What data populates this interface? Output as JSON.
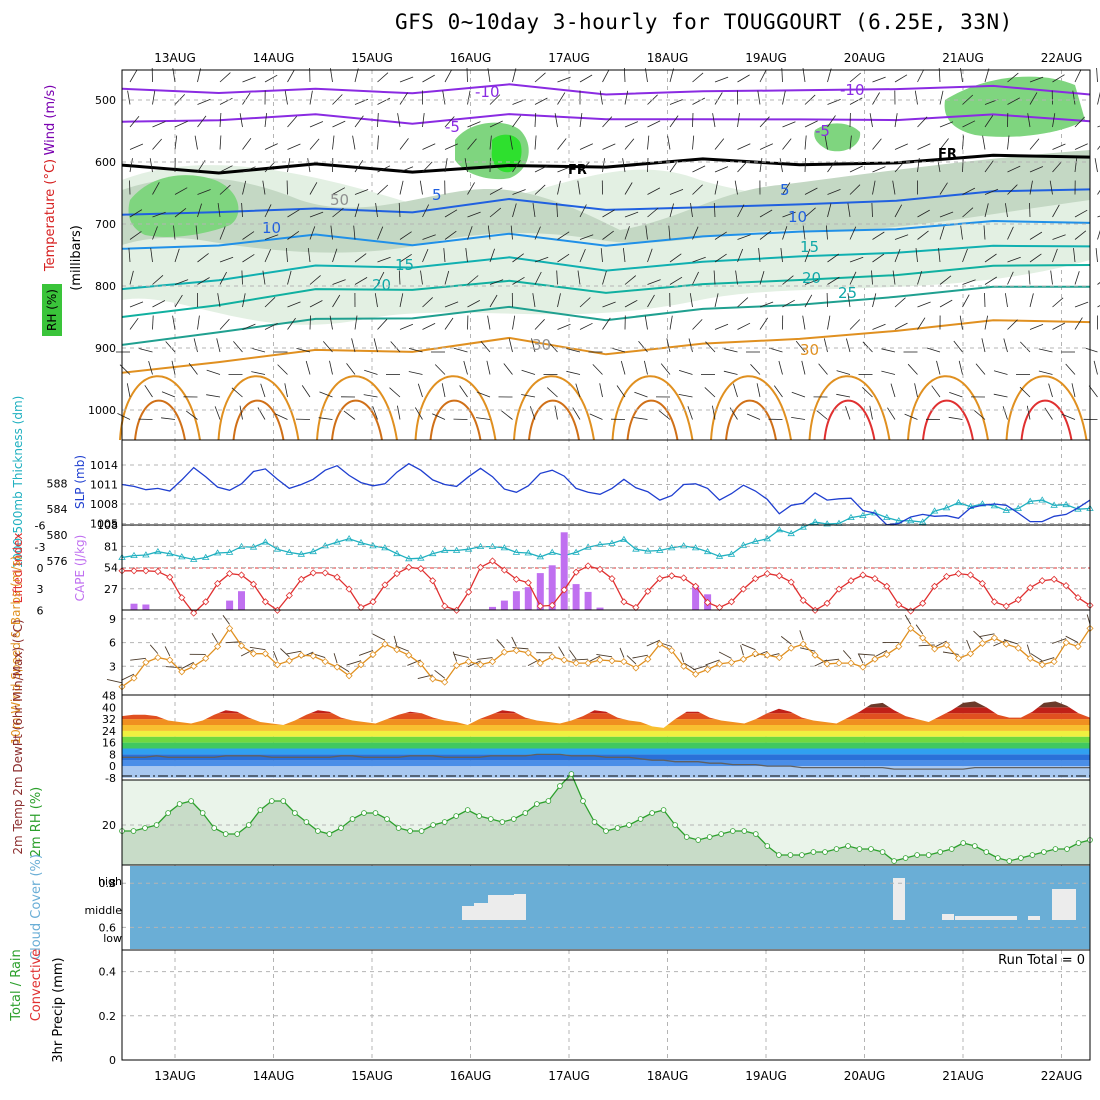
{
  "title": "GFS 0~10day 3-hourly for TOUGGOURT (6.25E, 33N)",
  "colors": {
    "wind": "#7a00b0",
    "temp": "#d62020",
    "rh": "#2ca02c",
    "slp": "#1f3fd0",
    "thick": "#20b0c0",
    "cape": "#c070f0",
    "li": "#e03030",
    "ws": "#e09020",
    "cloud": "#6aaed6",
    "dewpt": "#606060"
  },
  "chart_data": [
    {
      "type": "contour",
      "panel": "upper-air",
      "title": "",
      "ylabel_parts": [
        "Wind (m/s)",
        "Temperature (°C)",
        "RH (%)",
        "(millibars)"
      ],
      "y_ticks": [
        "500",
        "600",
        "700",
        "800",
        "900",
        "1000"
      ],
      "contour_labels": [
        {
          "text": "-10",
          "color": "purple"
        },
        {
          "text": "-10",
          "color": "purple"
        },
        {
          "text": "-5",
          "color": "purple"
        },
        {
          "text": "-5",
          "color": "purple"
        },
        {
          "text": "FR",
          "color": "black"
        },
        {
          "text": "FR",
          "color": "black"
        },
        {
          "text": "5",
          "color": "blue"
        },
        {
          "text": "5",
          "color": "blue"
        },
        {
          "text": "10",
          "color": "blue"
        },
        {
          "text": "10",
          "color": "blue"
        },
        {
          "text": "15",
          "color": "teal"
        },
        {
          "text": "15",
          "color": "teal"
        },
        {
          "text": "20",
          "color": "teal"
        },
        {
          "text": "20",
          "color": "teal"
        },
        {
          "text": "25",
          "color": "teal"
        },
        {
          "text": "30",
          "color": "orange"
        },
        {
          "text": "50",
          "color": "gray"
        },
        {
          "text": "30",
          "color": "gray"
        }
      ],
      "isotherms_pressure_mb": [
        {
          "label": "-10",
          "p": [
            482,
            486,
            487,
            483,
            481,
            486,
            489,
            484,
            480,
            482,
            485
          ]
        },
        {
          "label": "-5",
          "p": [
            535,
            530,
            528,
            532,
            529,
            526,
            534,
            531,
            530,
            528,
            528
          ]
        },
        {
          "label": "FR",
          "p": [
            605,
            615,
            608,
            610,
            612,
            603,
            598,
            604,
            599,
            594,
            586
          ]
        },
        {
          "label": "5",
          "p": [
            685,
            678,
            680,
            675,
            666,
            672,
            676,
            668,
            660,
            652,
            638
          ]
        },
        {
          "label": "10",
          "p": [
            740,
            732,
            722,
            728,
            722,
            730,
            723,
            712,
            706,
            700,
            692
          ]
        },
        {
          "label": "15",
          "p": [
            805,
            788,
            772,
            764,
            760,
            770,
            764,
            752,
            744,
            740,
            730
          ]
        },
        {
          "label": "20",
          "p": [
            850,
            828,
            810,
            800,
            798,
            806,
            800,
            790,
            780,
            772,
            760
          ]
        },
        {
          "label": "25",
          "p": [
            895,
            872,
            858,
            846,
            840,
            850,
            840,
            830,
            815,
            806,
            795
          ]
        },
        {
          "label": "30",
          "p": [
            940,
            920,
            908,
            900,
            890,
            905,
            896,
            885,
            870,
            860,
            852
          ]
        }
      ]
    },
    {
      "type": "line",
      "panel": "slp-thickness",
      "ylabel_left": "1000-500mb Thickness (dm)",
      "ylabel_right": "SLP (mb)",
      "thickness_ticks": [
        "588",
        "584",
        "580",
        "576"
      ],
      "slp_ticks": [
        "1014",
        "1011",
        "1008",
        "1005"
      ],
      "series": [
        {
          "name": "SLP (mb)",
          "values": [
            1011.0,
            1010.7,
            1010.2,
            1010.4,
            1010.0,
            1011.7,
            1013.6,
            1012.2,
            1010.6,
            1010.1,
            1011.1,
            1013.0,
            1013.4,
            1011.8,
            1010.4,
            1011.0,
            1011.8,
            1013.2,
            1013.9,
            1012.4,
            1011.3,
            1010.8,
            1011.1,
            1012.9,
            1014.2,
            1013.2,
            1011.7,
            1011.0,
            1010.7,
            1012.2,
            1013.5,
            1012.2,
            1010.3,
            1009.8,
            1010.8,
            1012.7,
            1013.2,
            1012.3,
            1010.4,
            1009.8,
            1009.5,
            1010.4,
            1011.8,
            1010.5,
            1009.9,
            1008.6,
            1009.3,
            1011.0,
            1011.1,
            1010.4,
            1008.6,
            1009.6,
            1010.9,
            1010.0,
            1008.7,
            1006.5,
            1007.8,
            1008.1,
            1009.7,
            1008.6,
            1008.8,
            1008.9,
            1007.0,
            1006.6,
            1004.8,
            1005.0,
            1006.0,
            1006.4,
            1006.1,
            1006.2,
            1005.8,
            1007.4,
            1007.8,
            1008.0,
            1007.8,
            1006.6,
            1005.3,
            1005.3,
            1006.1,
            1006.4,
            1007.4,
            1008.6
          ]
        },
        {
          "name": "1000-500mb Thickness (dm)",
          "values": [
            576.5,
            576.8,
            576.9,
            577.4,
            577.1,
            576.6,
            576.2,
            576.5,
            577.2,
            577.3,
            578.2,
            578.1,
            578.9,
            577.8,
            577.3,
            577.0,
            577.4,
            578.3,
            578.9,
            579.4,
            578.8,
            578.3,
            578.0,
            577.1,
            576.3,
            576.4,
            577.1,
            577.6,
            577.6,
            577.8,
            578.2,
            578.2,
            578.0,
            577.3,
            577.2,
            576.6,
            577.3,
            576.8,
            577.3,
            578.1,
            578.5,
            578.7,
            579.3,
            577.8,
            577.5,
            577.6,
            578.0,
            578.3,
            578.0,
            577.4,
            576.7,
            577.0,
            578.4,
            579.0,
            579.4,
            580.8,
            580.2,
            581.2,
            582.0,
            581.7,
            581.8,
            582.7,
            583.0,
            583.4,
            582.7,
            582.2,
            582.2,
            582.0,
            583.7,
            584.2,
            585.0,
            584.4,
            584.8,
            584.5,
            583.8,
            584.1,
            585.2,
            585.4,
            584.6,
            584.7,
            584.0,
            584.1
          ]
        }
      ]
    },
    {
      "type": "line",
      "panel": "cape-lifted-index",
      "ylabel_left": "Lifted Index",
      "ylabel_right": "CAPE (J/kg)",
      "li_ticks": [
        "-6",
        "-3",
        "0",
        "3",
        "6"
      ],
      "cape_ticks": [
        "108",
        "81",
        "54",
        "27"
      ],
      "series": [
        {
          "name": "Lifted Index",
          "values": [
            0.4,
            0.4,
            0.4,
            0.5,
            1.3,
            4.2,
            6.4,
            4.8,
            2.2,
            0.8,
            1.0,
            2.3,
            4.8,
            6.0,
            3.9,
            1.6,
            0.7,
            0.7,
            1.3,
            3.0,
            5.6,
            4.8,
            2.4,
            0.8,
            -0.1,
            0.1,
            1.8,
            5.4,
            6.0,
            3.4,
            -0.1,
            -1.0,
            0.3,
            1.6,
            2.1,
            5.4,
            5.3,
            3.1,
            0.6,
            -0.3,
            0.2,
            1.5,
            4.8,
            5.6,
            3.3,
            1.5,
            1.1,
            1.4,
            2.6,
            4.9,
            5.6,
            4.8,
            3.0,
            1.5,
            0.8,
            1.1,
            2.0,
            4.6,
            6.0,
            5.0,
            3.0,
            1.8,
            1.0,
            1.5,
            2.6,
            5.2,
            6.1,
            5.0,
            2.6,
            1.2,
            0.8,
            1.0,
            2.2,
            4.8,
            5.4,
            4.5,
            2.8,
            1.8,
            1.6,
            2.5,
            4.2,
            5.3
          ]
        },
        {
          "name": "CAPE (J/kg)",
          "values": [
            0,
            8,
            7,
            0,
            0,
            0,
            0,
            0,
            0,
            12,
            24,
            0,
            0,
            0,
            0,
            0,
            0,
            0,
            0,
            0,
            0,
            0,
            0,
            0,
            0,
            0,
            0,
            0,
            0,
            0,
            0,
            4,
            12,
            24,
            29,
            47,
            57,
            99,
            33,
            23,
            3,
            0,
            0,
            0,
            0,
            0,
            0,
            0,
            31,
            20,
            0,
            0,
            0,
            0,
            0,
            0,
            0,
            0,
            0,
            0,
            0,
            0,
            0,
            0,
            0,
            0,
            0,
            0,
            0,
            0,
            0,
            0,
            0,
            0,
            0,
            0,
            0,
            0,
            0,
            0,
            0,
            0
          ]
        }
      ]
    },
    {
      "type": "line",
      "panel": "wind-10m",
      "ylabel": "10m Wind Speed & Barbs (m/s)",
      "y_ticks": [
        "9",
        "6",
        "3"
      ],
      "series": [
        {
          "name": "10m Wind Speed",
          "values": [
            0.4,
            1.5,
            3.5,
            4.1,
            3.8,
            2.3,
            3.0,
            4.0,
            5.5,
            7.8,
            5.6,
            4.6,
            4.6,
            3.2,
            3.7,
            4.4,
            4.3,
            3.6,
            2.9,
            1.8,
            3.2,
            4.5,
            5.8,
            5.1,
            4.4,
            3.3,
            1.4,
            1.0,
            3.1,
            3.6,
            3.2,
            3.6,
            4.8,
            5.0,
            4.7,
            3.4,
            4.2,
            3.8,
            3.4,
            3.4,
            3.8,
            3.7,
            3.6,
            2.8,
            3.9,
            5.8,
            5.0,
            3.0,
            2.0,
            2.6,
            3.3,
            3.5,
            3.9,
            4.6,
            4.4,
            4.1,
            5.3,
            5.8,
            4.4,
            3.3,
            3.4,
            3.4,
            2.9,
            3.9,
            4.5,
            5.5,
            7.8,
            6.6,
            5.2,
            5.7,
            4.0,
            4.6,
            5.9,
            6.6,
            5.8,
            5.3,
            4.0,
            3.2,
            3.6,
            6.0,
            5.5,
            7.8
          ]
        }
      ]
    },
    {
      "type": "area",
      "panel": "temperature-2m",
      "ylabel": "2m Temp 2m DewPt (6hr Min/Max) (°C)",
      "y_ticks": [
        "48",
        "40",
        "32",
        "24",
        "16",
        "8",
        "0",
        "-8"
      ],
      "series": [
        {
          "name": "2m Temp",
          "values": [
            34,
            35,
            35,
            34,
            31,
            30,
            29,
            31,
            35,
            38,
            37,
            33,
            30,
            29,
            28,
            31,
            35,
            38,
            37,
            33,
            31,
            30,
            29,
            32,
            35,
            37,
            36,
            33,
            31,
            30,
            28,
            32,
            35,
            38,
            37,
            33,
            31,
            30,
            29,
            31,
            34,
            38,
            37,
            33,
            31,
            30,
            27,
            26,
            32,
            37,
            37,
            33,
            31,
            30,
            29,
            32,
            36,
            39,
            37,
            33,
            31,
            30,
            29,
            33,
            37,
            42,
            43,
            38,
            34,
            32,
            30,
            34,
            38,
            43,
            44,
            40,
            35,
            33,
            33,
            37,
            43,
            44,
            41,
            36,
            33
          ]
        },
        {
          "name": "2m DewPt",
          "values": [
            6,
            6,
            6,
            7,
            6,
            6,
            6,
            6,
            6,
            7,
            7,
            7,
            7,
            6,
            6,
            6,
            6,
            6,
            6,
            7,
            7,
            6,
            6,
            6,
            6,
            7,
            7,
            7,
            6,
            6,
            6,
            6,
            7,
            7,
            7,
            7,
            8,
            8,
            8,
            7,
            7,
            7,
            6,
            6,
            6,
            5,
            4,
            4,
            3,
            3,
            3,
            2,
            2,
            1,
            1,
            1,
            0,
            0,
            0,
            -1,
            -1,
            -1,
            -1,
            -1,
            -1,
            -1,
            -1,
            -2,
            -2,
            -2,
            -2,
            -2,
            -2,
            -2,
            -1,
            -1,
            -1,
            -1,
            -1,
            -1,
            -1,
            -1,
            -1,
            -1,
            -1
          ]
        }
      ]
    },
    {
      "type": "area",
      "panel": "rh-2m",
      "ylabel": "2m RH (%)",
      "y_ticks": [
        "20"
      ],
      "series": [
        {
          "name": "2m RH",
          "values": [
            18,
            18,
            19,
            20,
            24,
            27,
            28,
            24,
            19,
            17,
            17,
            20,
            25,
            28,
            28,
            24,
            21,
            18,
            17,
            19,
            22,
            24,
            24,
            22,
            19,
            18,
            18,
            20,
            21,
            23,
            25,
            23,
            22,
            21,
            22,
            24,
            27,
            28,
            33,
            37,
            28,
            21,
            18,
            19,
            20,
            22,
            24,
            25,
            20,
            16,
            15,
            16,
            17,
            18,
            18,
            17,
            13,
            10,
            10,
            10,
            11,
            11,
            12,
            13,
            12,
            12,
            11,
            8,
            9,
            10,
            10,
            11,
            12,
            14,
            13,
            11,
            9,
            8,
            9,
            10,
            11,
            12,
            12,
            14,
            15
          ]
        }
      ]
    },
    {
      "type": "bar",
      "panel": "cloud-cover",
      "ylabel": "Cloud Cover (%)",
      "y_ticks": [
        "high",
        "middle",
        "low"
      ],
      "layers": [
        "high",
        "middle",
        "low"
      ]
    },
    {
      "type": "bar",
      "panel": "precip",
      "ylabel_parts": [
        "Total / Rain",
        "Convective",
        "3hr Precip (mm)"
      ],
      "y_ticks": [
        "0.8",
        "0.6",
        "0.4",
        "0.2",
        "0"
      ],
      "annotation": "Run Total = 0"
    }
  ],
  "x_axis": {
    "dates": [
      "13AUG",
      "14AUG",
      "15AUG",
      "16AUG",
      "17AUG",
      "18AUG",
      "19AUG",
      "20AUG",
      "21AUG",
      "22AUG"
    ]
  }
}
